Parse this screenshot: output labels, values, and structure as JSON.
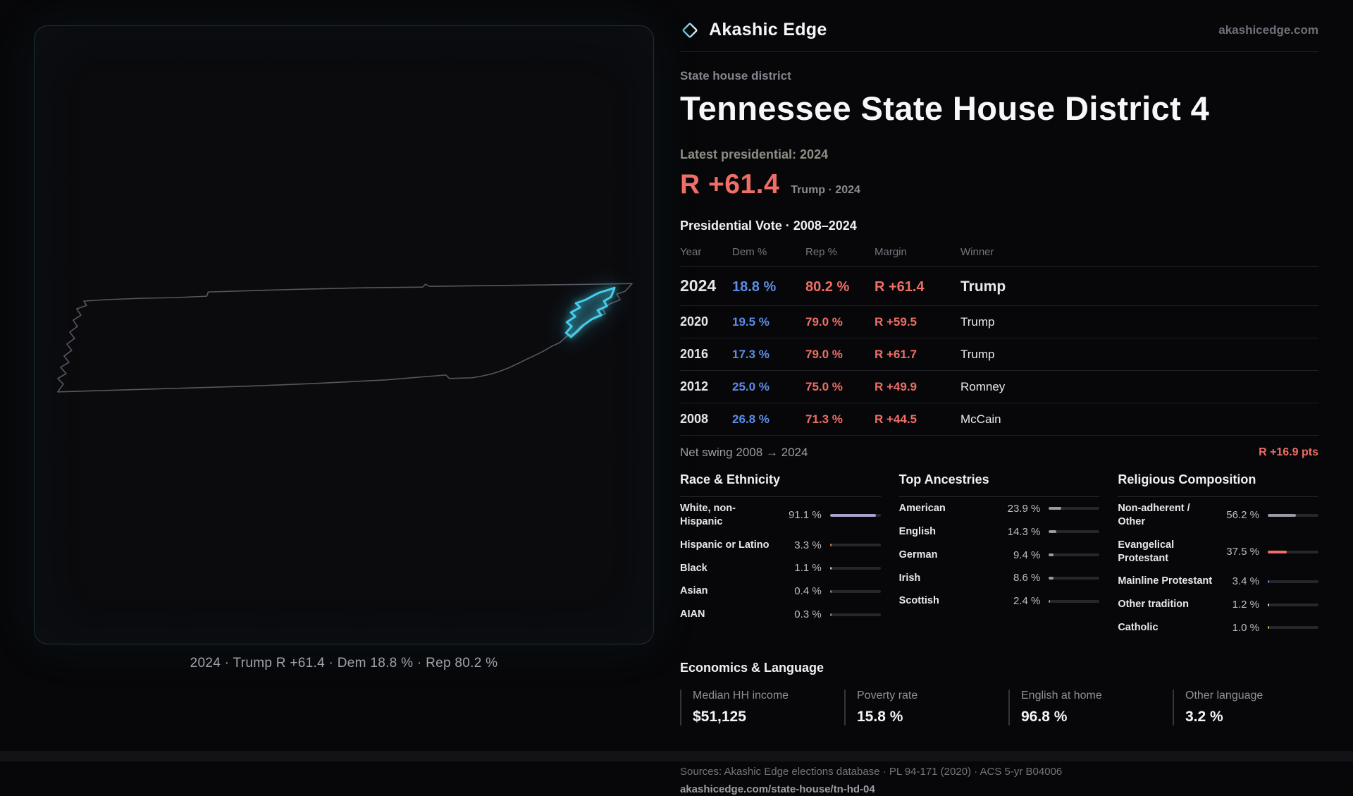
{
  "theme": {
    "bg": "#070709",
    "panel_bg": "#0b0b0e",
    "dem_blue": "#5b8ce8",
    "rep_red": "#ef6e67",
    "accent_cyan": "#45cdea"
  },
  "brand": {
    "name": "Akashic Edge",
    "site": "akashicedge.com"
  },
  "page": {
    "kicker": "State house district",
    "title": "Tennessee State House District 4",
    "latest_label": "Latest presidential: 2024",
    "headline_margin": "R +61.4",
    "headline_context": "Trump · 2024"
  },
  "map": {
    "caption": "2024 · Trump R +61.4 · Dem 18.8 % · Rep 80.2 %"
  },
  "vote_table": {
    "title": "Presidential Vote · 2008–2024",
    "columns": [
      "Year",
      "Dem %",
      "Rep %",
      "Margin",
      "Winner"
    ],
    "rows": [
      {
        "year": "2024",
        "dem": "18.8 %",
        "rep": "80.2 %",
        "margin": "R +61.4",
        "winner": "Trump"
      },
      {
        "year": "2020",
        "dem": "19.5 %",
        "rep": "79.0 %",
        "margin": "R +59.5",
        "winner": "Trump"
      },
      {
        "year": "2016",
        "dem": "17.3 %",
        "rep": "79.0 %",
        "margin": "R +61.7",
        "winner": "Trump"
      },
      {
        "year": "2012",
        "dem": "25.0 %",
        "rep": "75.0 %",
        "margin": "R +49.9",
        "winner": "Romney"
      },
      {
        "year": "2008",
        "dem": "26.8 %",
        "rep": "71.3 %",
        "margin": "R +44.5",
        "winner": "McCain"
      }
    ],
    "net_swing_label": "Net swing 2008 → 2024",
    "net_swing_value": "R +16.9 pts"
  },
  "demographics": {
    "race": {
      "title": "Race & Ethnicity",
      "rows": [
        {
          "label": "White, non-Hispanic",
          "value": "91.1 %",
          "pct": 91.1,
          "color": "#a9a2cc"
        },
        {
          "label": "Hispanic or Latino",
          "value": "3.3 %",
          "pct": 3.3,
          "color": "#d9822f"
        },
        {
          "label": "Black",
          "value": "1.1 %",
          "pct": 1.1,
          "color": "#d0d0d8"
        },
        {
          "label": "Asian",
          "value": "0.4 %",
          "pct": 0.4,
          "color": "#8f8f99"
        },
        {
          "label": "AIAN",
          "value": "0.3 %",
          "pct": 0.3,
          "color": "#8f8f99"
        }
      ]
    },
    "ancestries": {
      "title": "Top Ancestries",
      "rows": [
        {
          "label": "American",
          "value": "23.9 %",
          "pct": 23.9,
          "color": "#9a9aa4"
        },
        {
          "label": "English",
          "value": "14.3 %",
          "pct": 14.3,
          "color": "#9a9aa4"
        },
        {
          "label": "German",
          "value": "9.4 %",
          "pct": 9.4,
          "color": "#9a9aa4"
        },
        {
          "label": "Irish",
          "value": "8.6 %",
          "pct": 8.6,
          "color": "#9a9aa4"
        },
        {
          "label": "Scottish",
          "value": "2.4 %",
          "pct": 2.4,
          "color": "#9a9aa4"
        }
      ]
    },
    "religion": {
      "title": "Religious Composition",
      "rows": [
        {
          "label": "Non-adherent / Other",
          "value": "56.2 %",
          "pct": 56.2,
          "color": "#9a9aa4"
        },
        {
          "label": "Evangelical Protestant",
          "value": "37.5 %",
          "pct": 37.5,
          "color": "#ef6e67"
        },
        {
          "label": "Mainline Protestant",
          "value": "3.4 %",
          "pct": 3.4,
          "color": "#5b8ce8"
        },
        {
          "label": "Other tradition",
          "value": "1.2 %",
          "pct": 1.2,
          "color": "#d8d8e0"
        },
        {
          "label": "Catholic",
          "value": "1.0 %",
          "pct": 1.0,
          "color": "#d4b83c"
        }
      ]
    }
  },
  "economics": {
    "title": "Economics & Language",
    "stats": [
      {
        "label": "Median HH income",
        "value": "$51,125"
      },
      {
        "label": "Poverty rate",
        "value": "15.8 %"
      },
      {
        "label": "English at home",
        "value": "96.8 %"
      },
      {
        "label": "Other language",
        "value": "3.2 %"
      }
    ]
  },
  "footer": {
    "sources": "Sources: Akashic Edge elections database · PL 94-171 (2020) · ACS 5-yr B04006",
    "permalink": "akashicedge.com/state-house/tn-hd-04"
  }
}
